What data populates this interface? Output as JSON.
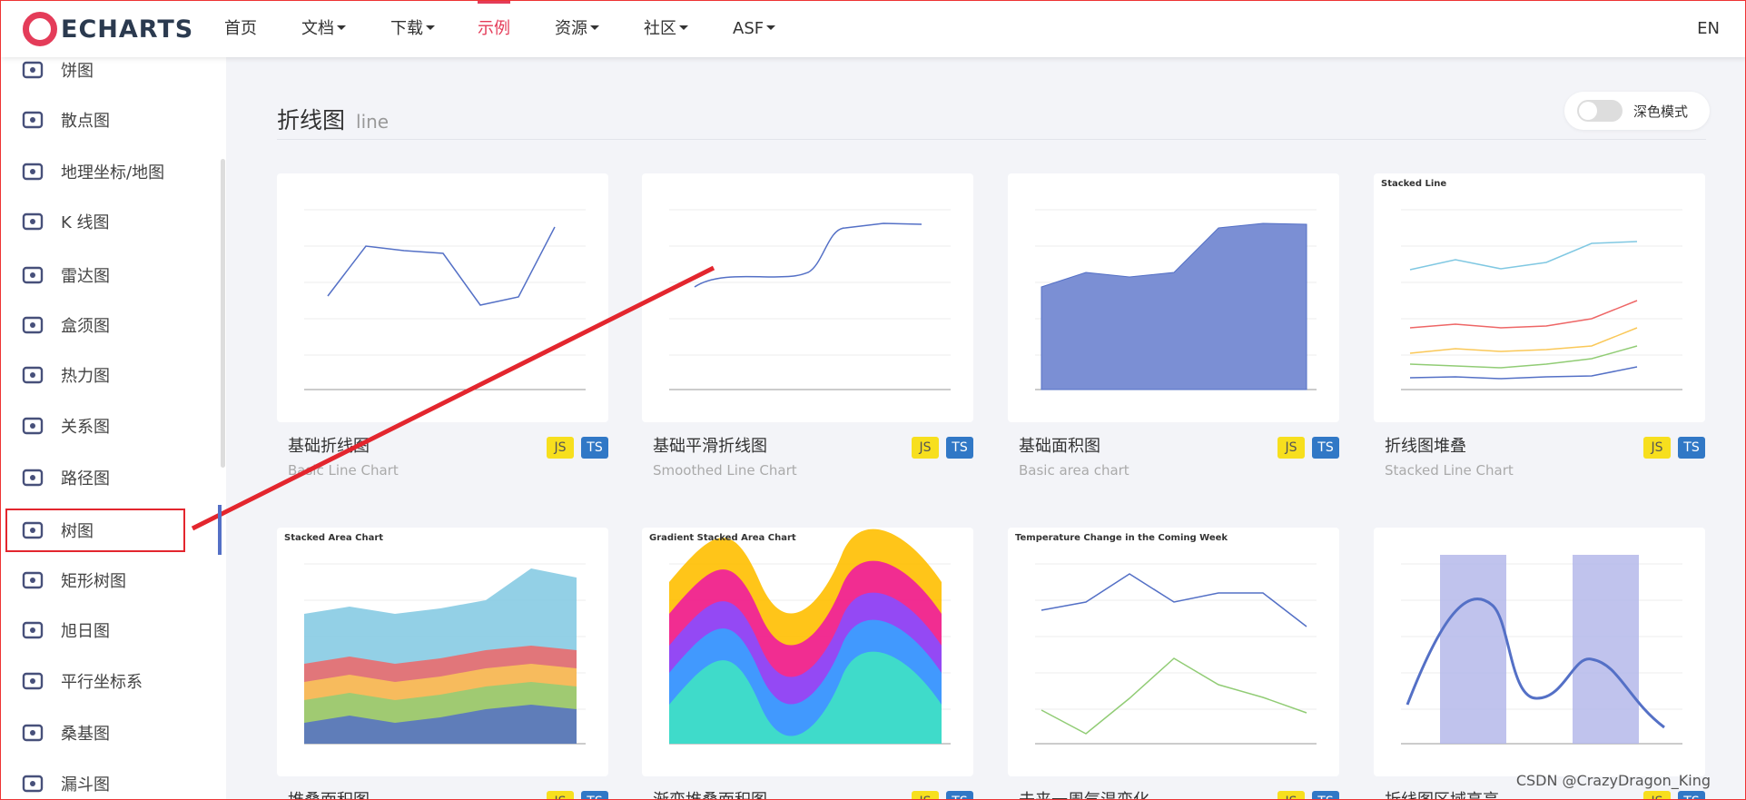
{
  "nav": {
    "logo": "ECHARTS",
    "items": [
      "首页",
      "文档",
      "下载",
      "示例",
      "资源",
      "社区",
      "ASF"
    ],
    "dropdown": [
      false,
      true,
      true,
      false,
      true,
      true,
      true
    ],
    "active": 3,
    "lang": "EN"
  },
  "sidebar": {
    "items": [
      "饼图",
      "散点图",
      "地理坐标/地图",
      "K 线图",
      "雷达图",
      "盒须图",
      "热力图",
      "关系图",
      "路径图",
      "树图",
      "矩形树图",
      "旭日图",
      "平行坐标系",
      "桑基图",
      "漏斗图"
    ],
    "selected": 9
  },
  "section": {
    "title": "折线图",
    "subtitle": "line",
    "toggle": "深色模式"
  },
  "cards": [
    {
      "title": "基础折线图",
      "subtitle": "Basic Line Chart",
      "badges": [
        "JS",
        "TS"
      ]
    },
    {
      "title": "基础平滑折线图",
      "subtitle": "Smoothed Line Chart",
      "badges": [
        "JS",
        "TS"
      ]
    },
    {
      "title": "基础面积图",
      "subtitle": "Basic area chart",
      "badges": [
        "JS",
        "TS"
      ]
    },
    {
      "title": "折线图堆叠",
      "subtitle": "Stacked Line Chart",
      "badges": [
        "JS",
        "TS"
      ],
      "thumb_title": "Stacked Line"
    },
    {
      "title": "堆叠面积图",
      "badges": [
        "JS",
        "TS"
      ],
      "thumb_title": "Stacked Area Chart"
    },
    {
      "title": "渐变堆叠面积图",
      "badges": [
        "JS",
        "TS"
      ],
      "thumb_title": "Gradient Stacked Area Chart"
    },
    {
      "title": "未来一周气温变化",
      "badges": [
        "JS",
        "TS"
      ],
      "thumb_title": "Temperature Change in the Coming Week"
    },
    {
      "title": "折线图区域高亮",
      "badges": [
        "JS",
        "TS"
      ]
    }
  ],
  "watermark": "CSDN @CrazyDragon_King"
}
